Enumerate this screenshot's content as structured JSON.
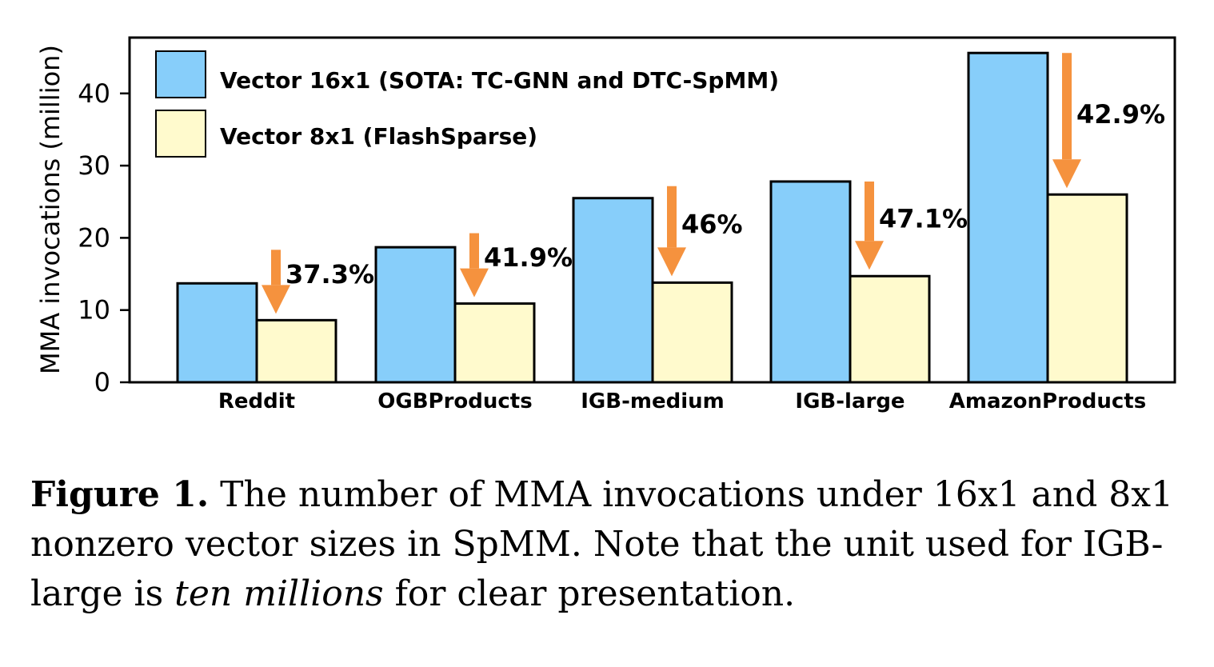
{
  "chart_data": {
    "type": "bar",
    "ylabel": "MMA invocations (million)",
    "ylim": [
      0,
      48
    ],
    "yticks": [
      0,
      10,
      20,
      30,
      40
    ],
    "categories": [
      "Reddit",
      "OGBProducts",
      "IGB-medium",
      "IGB-large",
      "AmazonProducts"
    ],
    "series": [
      {
        "name": "Vector 16x1 (SOTA: TC-GNN and DTC-SpMM)",
        "color": "#87CEFA",
        "values": [
          13.7,
          18.7,
          25.5,
          27.8,
          45.6
        ]
      },
      {
        "name": "Vector 8x1 (FlashSparse)",
        "color": "#FFFACD",
        "values": [
          8.6,
          10.9,
          13.8,
          14.7,
          26.0
        ]
      }
    ],
    "annotations": [
      "37.3%",
      "41.9%",
      "46%",
      "47.1%",
      "42.9%"
    ],
    "arrow_color": "#F5923E",
    "legend_position": "top-left",
    "grid": false
  },
  "caption": {
    "label": "Figure 1.",
    "text_before": " The number of MMA invocations under 16x1 and 8x1 nonzero vector sizes in SpMM. Note that the unit used for IGB-large is ",
    "emphasis": "ten millions",
    "text_after": " for clear presentation."
  }
}
